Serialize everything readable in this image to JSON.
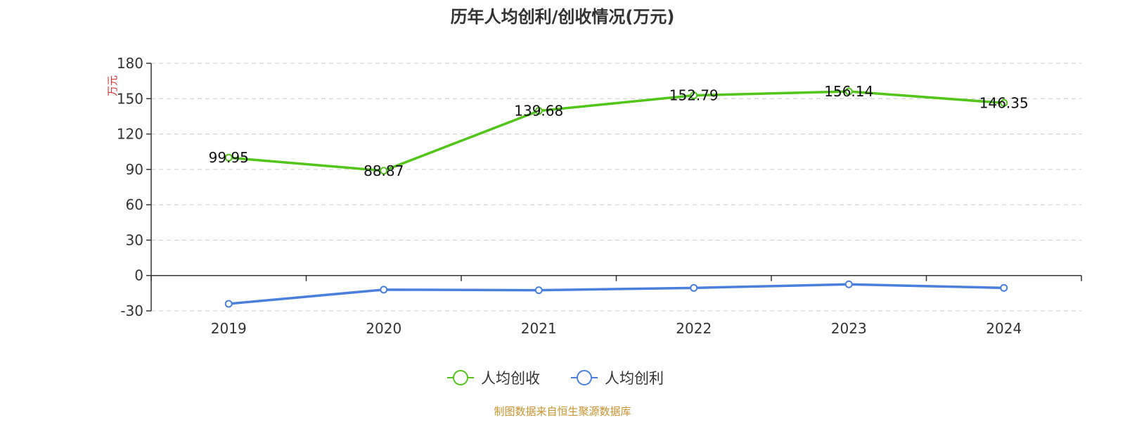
{
  "chart_data": {
    "type": "line",
    "title": "历年人均创利/创收情况(万元)",
    "ylabel": "万元",
    "xlabel": "",
    "categories": [
      "2019",
      "2020",
      "2021",
      "2022",
      "2023",
      "2024"
    ],
    "ylim": [
      -30,
      180
    ],
    "yticks": [
      -30,
      0,
      30,
      60,
      90,
      120,
      150,
      180
    ],
    "grid": true,
    "legend_position": "bottom",
    "series": [
      {
        "name": "人均创收",
        "color": "#52c41a",
        "values": [
          99.95,
          88.87,
          139.68,
          152.79,
          156.14,
          146.35
        ],
        "labels": [
          "99.95",
          "88.87",
          "139.68",
          "152.79",
          "156.14",
          "146.35"
        ]
      },
      {
        "name": "人均创利",
        "color": "#4a7fdc",
        "values": [
          -24,
          -12,
          -12.5,
          -10.5,
          -7.5,
          -10.5
        ]
      }
    ]
  },
  "source_text": "制图数据来自恒生聚源数据库"
}
